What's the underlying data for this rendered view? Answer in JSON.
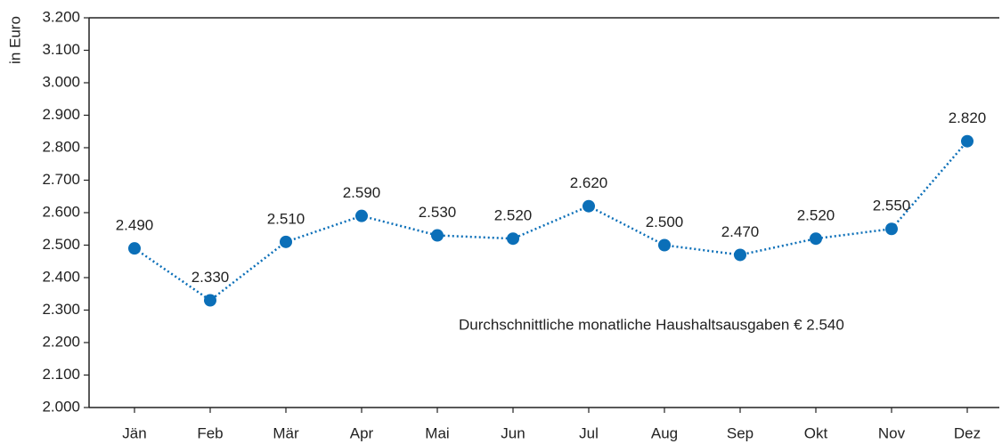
{
  "chart_data": {
    "type": "line",
    "y_label": "in Euro",
    "annotation": "Durchschnittliche monatliche Haushaltsausgaben € 2.540",
    "categories": [
      "Jän",
      "Feb",
      "Mär",
      "Apr",
      "Mai",
      "Jun",
      "Jul",
      "Aug",
      "Sep",
      "Okt",
      "Nov",
      "Dez"
    ],
    "series": [
      {
        "color": "#0b6fb8",
        "values": [
          2490,
          2330,
          2510,
          2590,
          2530,
          2520,
          2620,
          2500,
          2470,
          2520,
          2550,
          2820
        ],
        "value_labels": [
          "2.490",
          "2.330",
          "2.510",
          "2.590",
          "2.530",
          "2.520",
          "2.620",
          "2.500",
          "2.470",
          "2.520",
          "2.550",
          "2.820"
        ]
      }
    ],
    "ylim": [
      2000,
      3200
    ],
    "yticks": [
      {
        "value": 2000,
        "label": "2.000"
      },
      {
        "value": 2100,
        "label": "2.100"
      },
      {
        "value": 2200,
        "label": "2.200"
      },
      {
        "value": 2300,
        "label": "2.300"
      },
      {
        "value": 2400,
        "label": "2.400"
      },
      {
        "value": 2500,
        "label": "2.500"
      },
      {
        "value": 2600,
        "label": "2.600"
      },
      {
        "value": 2700,
        "label": "2.700"
      },
      {
        "value": 2800,
        "label": "2.800"
      },
      {
        "value": 2900,
        "label": "2.900"
      },
      {
        "value": 3000,
        "label": "3.000"
      },
      {
        "value": 3100,
        "label": "3.100"
      },
      {
        "value": 3200,
        "label": "3.200"
      }
    ]
  }
}
